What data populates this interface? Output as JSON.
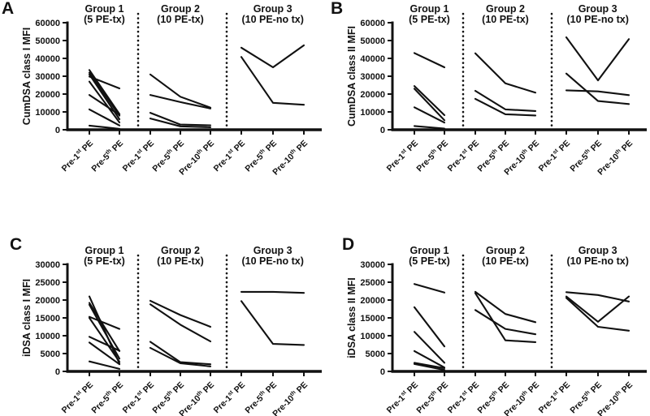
{
  "figure": {
    "background": "#ffffff"
  },
  "chart_data": {
    "type": "line",
    "line_color": "#111111",
    "description_visible_text_only": "Four-panel paired line plots of DSA MFI before plasma-exchange sessions",
    "panels": [
      {
        "letter": "A",
        "ylabel": "CumDSA class I MFI",
        "ylim": [
          0,
          60000
        ],
        "ytick_labels": [
          "0",
          "10000",
          "20000",
          "30000",
          "40000",
          "50000",
          "60000"
        ],
        "groups": [
          {
            "title": "Group 1",
            "subtitle": "(5 PE-tx)",
            "x_labels": [
              [
                "Pre-1",
                "st",
                " PE"
              ],
              [
                "Pre-5",
                "th",
                " PE"
              ]
            ],
            "series": [
              [
                33500,
                8800
              ],
              [
                32000,
                7900
              ],
              [
                31000,
                5900
              ],
              [
                29800,
                23200
              ],
              [
                27000,
                4100
              ],
              [
                19500,
                8300
              ],
              [
                11400,
                2400
              ],
              [
                2300,
                500
              ]
            ]
          },
          {
            "title": "Group 2",
            "subtitle": "(10 PE-tx)",
            "x_labels": [
              [
                "Pre-1",
                "st",
                " PE"
              ],
              [
                "Pre-5",
                "th",
                " PE"
              ],
              [
                "Pre-10",
                "th",
                " PE"
              ]
            ],
            "series": [
              [
                31000,
                18500,
                12400
              ],
              [
                19500,
                15500,
                11900
              ],
              [
                9500,
                2900,
                2500
              ],
              [
                6300,
                1900,
                1400
              ]
            ]
          },
          {
            "title": "Group 3",
            "subtitle": "(10 PE-no tx)",
            "x_labels": [
              [
                "Pre-1",
                "st",
                " PE"
              ],
              [
                "Pre-5",
                "th",
                " PE"
              ],
              [
                "Pre-10",
                "th",
                " PE"
              ]
            ],
            "series": [
              [
                46000,
                35000,
                47300
              ],
              [
                40800,
                15100,
                14000
              ]
            ]
          }
        ]
      },
      {
        "letter": "B",
        "ylabel": "CumDSA class II MFI",
        "ylim": [
          0,
          60000
        ],
        "ytick_labels": [
          "0",
          "10000",
          "20000",
          "30000",
          "40000",
          "50000",
          "60000"
        ],
        "groups": [
          {
            "title": "Group 1",
            "subtitle": "(5 PE-tx)",
            "x_labels": [
              [
                "Pre-1",
                "st",
                " PE"
              ],
              [
                "Pre-5",
                "th",
                " PE"
              ]
            ],
            "series": [
              [
                43000,
                35000
              ],
              [
                24500,
                8200
              ],
              [
                23000,
                5300
              ],
              [
                12600,
                4000
              ],
              [
                2100,
                700
              ]
            ]
          },
          {
            "title": "Group 2",
            "subtitle": "(10 PE-tx)",
            "x_labels": [
              [
                "Pre-1",
                "st",
                " PE"
              ],
              [
                "Pre-5",
                "th",
                " PE"
              ],
              [
                "Pre-10",
                "th",
                " PE"
              ]
            ],
            "series": [
              [
                42800,
                26000,
                20800
              ],
              [
                21800,
                11400,
                10500
              ],
              [
                17300,
                8700,
                8000
              ]
            ]
          },
          {
            "title": "Group 3",
            "subtitle": "(10 PE-no tx)",
            "x_labels": [
              [
                "Pre-1",
                "st",
                " PE"
              ],
              [
                "Pre-5",
                "th",
                " PE"
              ],
              [
                "Pre-10",
                "th",
                " PE"
              ]
            ],
            "series": [
              [
                51800,
                27700,
                50800
              ],
              [
                31500,
                16100,
                14400
              ],
              [
                22100,
                21500,
                19400
              ]
            ]
          }
        ]
      },
      {
        "letter": "C",
        "ylabel": "iDSA class I MFI",
        "ylim": [
          0,
          30000
        ],
        "ytick_labels": [
          "0",
          "5000",
          "10000",
          "15000",
          "20000",
          "25000",
          "30000"
        ],
        "groups": [
          {
            "title": "Group 1",
            "subtitle": "(5 PE-tx)",
            "x_labels": [
              [
                "Pre-1",
                "st",
                " PE"
              ],
              [
                "Pre-5",
                "th",
                " PE"
              ]
            ],
            "series": [
              [
                21000,
                2200
              ],
              [
                19200,
                5700
              ],
              [
                18700,
                3600
              ],
              [
                15300,
                11900
              ],
              [
                15000,
                2700
              ],
              [
                9700,
                5800
              ],
              [
                8100,
                2000
              ],
              [
                2800,
                700
              ]
            ]
          },
          {
            "title": "Group 2",
            "subtitle": "(10 PE-tx)",
            "x_labels": [
              [
                "Pre-1",
                "st",
                " PE"
              ],
              [
                "Pre-5",
                "th",
                " PE"
              ],
              [
                "Pre-10",
                "th",
                " PE"
              ]
            ],
            "series": [
              [
                19800,
                15800,
                12500
              ],
              [
                18800,
                13100,
                8400
              ],
              [
                8300,
                2600,
                2000
              ],
              [
                6600,
                2300,
                1400
              ]
            ]
          },
          {
            "title": "Group 3",
            "subtitle": "(10 PE-no tx)",
            "x_labels": [
              [
                "Pre-1",
                "st",
                " PE"
              ],
              [
                "Pre-5",
                "th",
                " PE"
              ],
              [
                "Pre-10",
                "th",
                " PE"
              ]
            ],
            "series": [
              [
                22300,
                22300,
                22000
              ],
              [
                19700,
                7700,
                7400
              ]
            ]
          }
        ]
      },
      {
        "letter": "D",
        "ylabel": "iDSA class II MFI",
        "ylim": [
          0,
          30000
        ],
        "ytick_labels": [
          "0",
          "5000",
          "10000",
          "15000",
          "20000",
          "25000",
          "30000"
        ],
        "groups": [
          {
            "title": "Group 1",
            "subtitle": "(5 PE-tx)",
            "x_labels": [
              [
                "Pre-1",
                "st",
                " PE"
              ],
              [
                "Pre-5",
                "th",
                " PE"
              ]
            ],
            "series": [
              [
                24500,
                22100
              ],
              [
                18000,
                7000
              ],
              [
                11100,
                2400
              ],
              [
                5700,
                1100
              ],
              [
                2400,
                900
              ],
              [
                2100,
                400
              ]
            ]
          },
          {
            "title": "Group 2",
            "subtitle": "(10 PE-tx)",
            "x_labels": [
              [
                "Pre-1",
                "st",
                " PE"
              ],
              [
                "Pre-5",
                "th",
                " PE"
              ],
              [
                "Pre-10",
                "th",
                " PE"
              ]
            ],
            "series": [
              [
                22300,
                16100,
                13800
              ],
              [
                21900,
                8700,
                8200
              ],
              [
                17200,
                11900,
                10400
              ]
            ]
          },
          {
            "title": "Group 3",
            "subtitle": "(10 PE-no tx)",
            "x_labels": [
              [
                "Pre-1",
                "st",
                " PE"
              ],
              [
                "Pre-5",
                "th",
                " PE"
              ],
              [
                "Pre-10",
                "th",
                " PE"
              ]
            ],
            "series": [
              [
                22200,
                21400,
                19600
              ],
              [
                21000,
                13900,
                21000
              ],
              [
                20600,
                12500,
                11400
              ]
            ]
          }
        ]
      }
    ]
  }
}
